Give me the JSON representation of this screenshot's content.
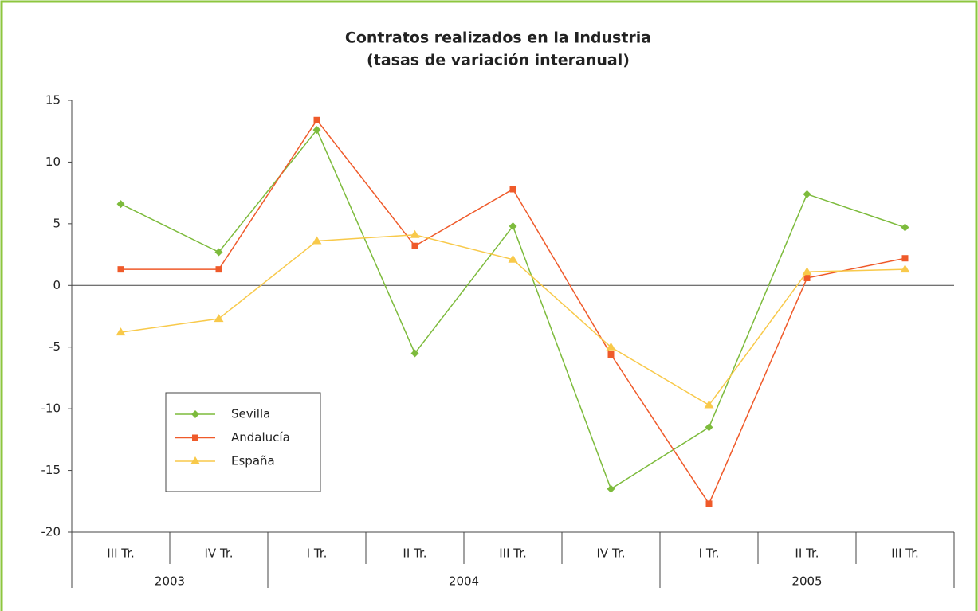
{
  "chart_data": {
    "type": "line",
    "title": [
      "Contratos realizados en la Industria",
      "(tasas de variación interanual)"
    ],
    "categories": [
      "III Tr.",
      "IV Tr.",
      "I Tr.",
      "II Tr.",
      "III Tr.",
      "IV Tr.",
      "I Tr.",
      "II Tr.",
      "III Tr."
    ],
    "groups": [
      {
        "label": "2003",
        "count": 2
      },
      {
        "label": "2004",
        "count": 4
      },
      {
        "label": "2005",
        "count": 3
      }
    ],
    "series": [
      {
        "name": "Sevilla",
        "color": "#7dbb3c",
        "marker": "diamond",
        "values": [
          6.6,
          2.7,
          12.6,
          -5.5,
          4.8,
          -16.5,
          -11.5,
          7.4,
          4.7
        ]
      },
      {
        "name": "Andalucía",
        "color": "#ef5a2a",
        "marker": "square",
        "values": [
          1.3,
          1.3,
          13.4,
          3.2,
          7.8,
          -5.6,
          -17.7,
          0.6,
          2.2
        ]
      },
      {
        "name": "España",
        "color": "#f8c94a",
        "marker": "triangle",
        "values": [
          -3.8,
          -2.7,
          3.6,
          4.1,
          2.1,
          -5.0,
          -9.7,
          1.1,
          1.3
        ]
      }
    ],
    "ylim": [
      -20,
      15
    ],
    "yticks": [
      -20,
      -15,
      -10,
      -5,
      0,
      5,
      10,
      15
    ],
    "legend": "lower-left"
  }
}
